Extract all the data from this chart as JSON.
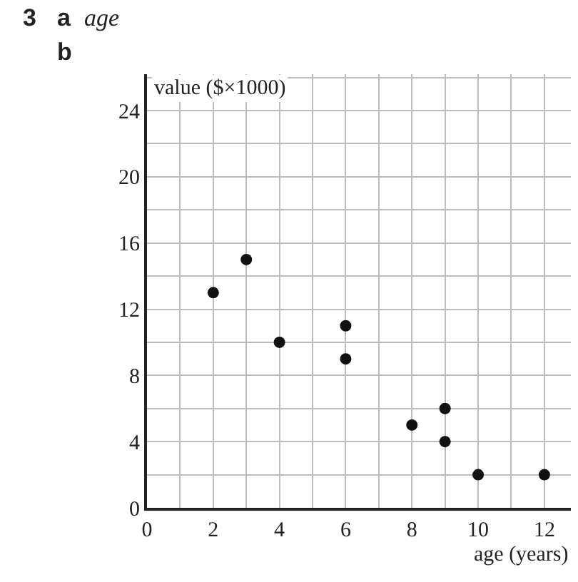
{
  "chart_data": {
    "type": "scatter",
    "xlabel": "age (years)",
    "ylabel": "value ($×1000)",
    "annotations": [
      "3",
      "a",
      "age",
      "b"
    ],
    "x": [
      2,
      3,
      4,
      6,
      6,
      8,
      9,
      9,
      10,
      12
    ],
    "values": [
      13,
      15,
      10,
      11,
      9,
      5,
      6,
      4,
      2,
      2
    ],
    "color": "#111111",
    "marker": "circle",
    "xlim": [
      0,
      12.8
    ],
    "ylim": [
      0,
      26.2
    ],
    "xticks": [
      0,
      {
        "value": 1,
        "label": null
      },
      2,
      {
        "value": 3,
        "label": null
      },
      4,
      {
        "value": 5,
        "label": null
      },
      6,
      {
        "value": 7,
        "label": null
      },
      8,
      {
        "value": 9,
        "label": null
      },
      10,
      {
        "value": 11,
        "label": null
      },
      12
    ],
    "yticks": [
      0,
      {
        "value": 2,
        "label": null
      },
      4,
      {
        "value": 6,
        "label": null
      },
      8,
      {
        "value": 10,
        "label": null
      },
      12,
      {
        "value": 14,
        "label": null
      },
      16,
      {
        "value": 18,
        "label": null
      },
      20,
      {
        "value": 22,
        "label": null
      },
      24,
      {
        "value": 26,
        "label": null
      }
    ],
    "grid": true
  }
}
